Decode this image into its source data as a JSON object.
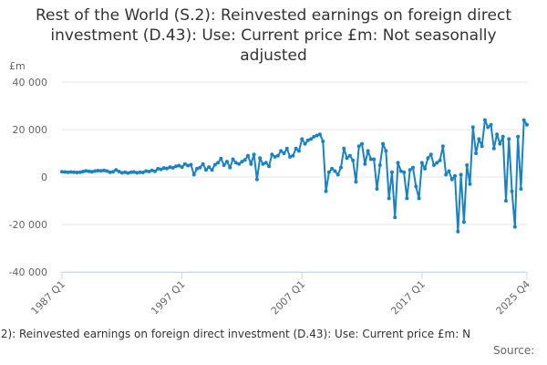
{
  "chart_data": {
    "type": "line",
    "title": "Rest of the World (S.2): Reinvested earnings on foreign direct investment (D.43): Use: Current price £m: Not seasonally adjusted",
    "y_label": "£m",
    "legend_text": ".2): Reinvested earnings on foreign direct investment (D.43): Use: Current price £m: N",
    "source": "Source:",
    "grid": true,
    "ylim": [
      -40000,
      40000
    ],
    "yticks": [
      {
        "value": -40000,
        "label": "-40 000"
      },
      {
        "value": -20000,
        "label": "-20 000"
      },
      0,
      {
        "value": 20000,
        "label": "20 000"
      },
      {
        "value": 40000,
        "label": "40 000"
      }
    ],
    "categories": [
      "1987 Q1",
      null,
      null,
      null,
      null,
      null,
      null,
      null,
      null,
      null,
      null,
      null,
      null,
      null,
      null,
      null,
      null,
      null,
      null,
      null,
      null,
      null,
      null,
      null,
      null,
      null,
      null,
      null,
      null,
      null,
      null,
      null,
      null,
      null,
      null,
      null,
      null,
      null,
      null,
      null,
      "1997 Q1",
      null,
      null,
      null,
      null,
      null,
      null,
      null,
      null,
      null,
      null,
      null,
      null,
      null,
      null,
      null,
      null,
      null,
      null,
      null,
      null,
      null,
      null,
      null,
      null,
      null,
      null,
      null,
      null,
      null,
      null,
      null,
      null,
      null,
      null,
      null,
      null,
      null,
      null,
      null,
      "2007 Q1",
      null,
      null,
      null,
      null,
      null,
      null,
      null,
      null,
      null,
      null,
      null,
      null,
      null,
      null,
      null,
      null,
      null,
      null,
      null,
      null,
      null,
      null,
      null,
      null,
      null,
      null,
      null,
      null,
      null,
      null,
      null,
      null,
      null,
      null,
      null,
      null,
      null,
      null,
      null,
      "2017 Q1",
      null,
      null,
      null,
      null,
      null,
      null,
      null,
      null,
      null,
      null,
      null,
      null,
      null,
      null,
      null,
      null,
      null,
      null,
      null,
      null,
      null,
      null,
      null,
      null,
      null,
      null,
      null,
      null,
      null,
      null,
      null,
      null,
      null,
      null,
      "2025 Q4"
    ],
    "color": "#1a81c2",
    "values": [
      2200,
      2100,
      2000,
      2100,
      2000,
      1900,
      2000,
      2300,
      2600,
      2400,
      2200,
      2500,
      2700,
      2600,
      2800,
      2500,
      2000,
      2200,
      3000,
      2300,
      1800,
      2000,
      1700,
      2000,
      2100,
      1800,
      2000,
      1900,
      2500,
      2300,
      2800,
      2400,
      3500,
      3200,
      3800,
      3600,
      4200,
      3900,
      4500,
      4800,
      4200,
      5500,
      4800,
      5200,
      1000,
      3500,
      4000,
      5500,
      3000,
      4200,
      3000,
      5200,
      6000,
      7800,
      5000,
      6500,
      4000,
      7500,
      6000,
      5500,
      6500,
      7200,
      9000,
      5500,
      9500,
      -1000,
      8000,
      5500,
      6000,
      4500,
      9500,
      8500,
      9000,
      11000,
      10000,
      12000,
      8500,
      9000,
      12000,
      11000,
      16000,
      14000,
      15500,
      16000,
      17000,
      17500,
      18000,
      15000,
      -6000,
      2000,
      3500,
      2500,
      1000,
      4000,
      12000,
      8000,
      9000,
      7000,
      -2000,
      13000,
      14000,
      5500,
      11000,
      7500,
      7500,
      -5000,
      5000,
      14000,
      11000,
      -9000,
      2000,
      -17000,
      6000,
      2500,
      2000,
      -9000,
      3000,
      4000,
      -4000,
      -9000,
      6000,
      3500,
      8000,
      9500,
      5000,
      6000,
      7000,
      13000,
      1000,
      2500,
      -1000,
      500,
      -23000,
      1000,
      -19000,
      5000,
      -3000,
      21000,
      10000,
      16000,
      13000,
      24000,
      21000,
      22000,
      12000,
      18000,
      14000,
      17000,
      -10000,
      16000,
      -6000,
      -21000,
      17000,
      -5000,
      24000,
      22000
    ]
  }
}
